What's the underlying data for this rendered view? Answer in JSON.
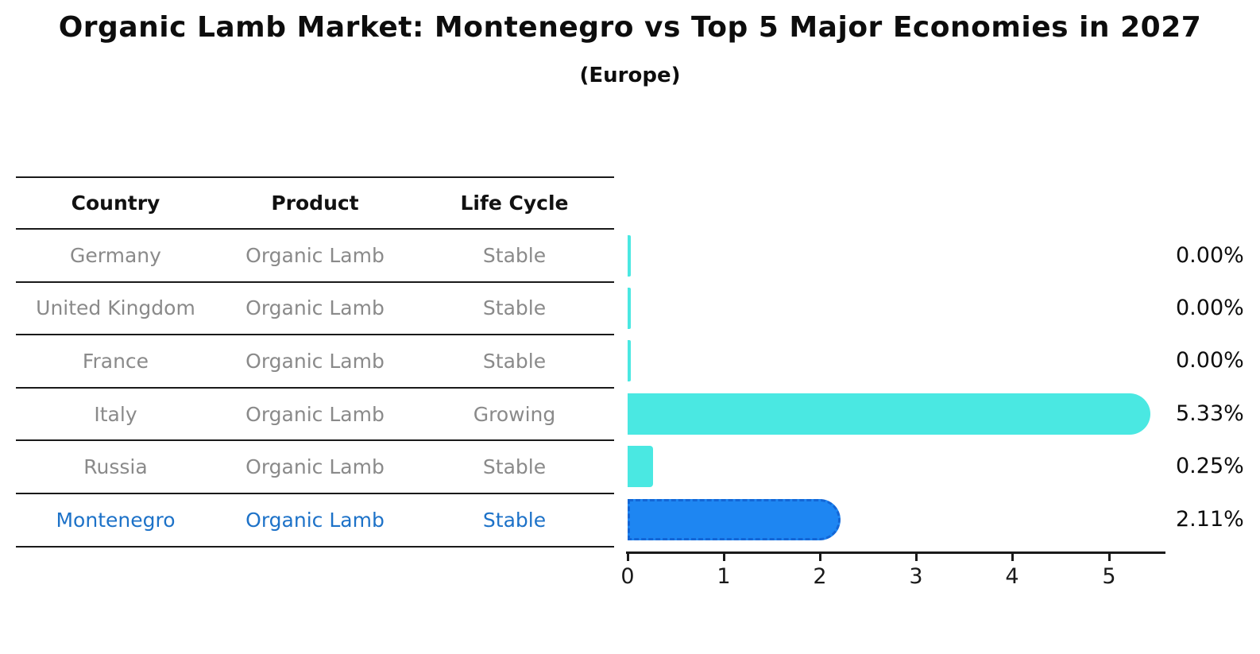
{
  "title": "Organic Lamb Market: Montenegro vs Top 5 Major Economies in 2027",
  "subtitle": "(Europe)",
  "table": {
    "headers": {
      "country": "Country",
      "product": "Product",
      "life_cycle": "Life Cycle"
    },
    "rows": [
      {
        "country": "Germany",
        "product": "Organic Lamb",
        "life_cycle": "Stable",
        "highlight": false
      },
      {
        "country": "United Kingdom",
        "product": "Organic Lamb",
        "life_cycle": "Stable",
        "highlight": false
      },
      {
        "country": "France",
        "product": "Organic Lamb",
        "life_cycle": "Stable",
        "highlight": false
      },
      {
        "country": "Italy",
        "product": "Organic Lamb",
        "life_cycle": "Growing",
        "highlight": false
      },
      {
        "country": "Russia",
        "product": "Organic Lamb",
        "life_cycle": "Stable",
        "highlight": false
      },
      {
        "country": "Montenegro",
        "product": "Organic Lamb",
        "life_cycle": "Stable",
        "highlight": true
      }
    ]
  },
  "chart_data": {
    "type": "bar",
    "orientation": "horizontal",
    "title": "Organic Lamb Market: Montenegro vs Top 5 Major Economies in 2027",
    "subtitle": "(Europe)",
    "categories": [
      "Germany",
      "United Kingdom",
      "France",
      "Italy",
      "Russia",
      "Montenegro"
    ],
    "values": [
      0.0,
      0.0,
      0.0,
      5.33,
      0.25,
      2.11
    ],
    "value_labels": [
      "0.00%",
      "0.00%",
      "0.00%",
      "5.33%",
      "0.25%",
      "2.11%"
    ],
    "xticks": [
      "0",
      "1",
      "2",
      "3",
      "4",
      "5"
    ],
    "xlim": [
      0,
      5.6
    ],
    "grid": false,
    "legend": false,
    "bar_color": "#4ae8e2",
    "highlight_index": 5,
    "highlight_bar_color": "#1e86f2",
    "highlight_bar_border": "#1366d6",
    "highlight_text_color": "#1d72c8",
    "text_color_muted": "#8a8a8a"
  }
}
